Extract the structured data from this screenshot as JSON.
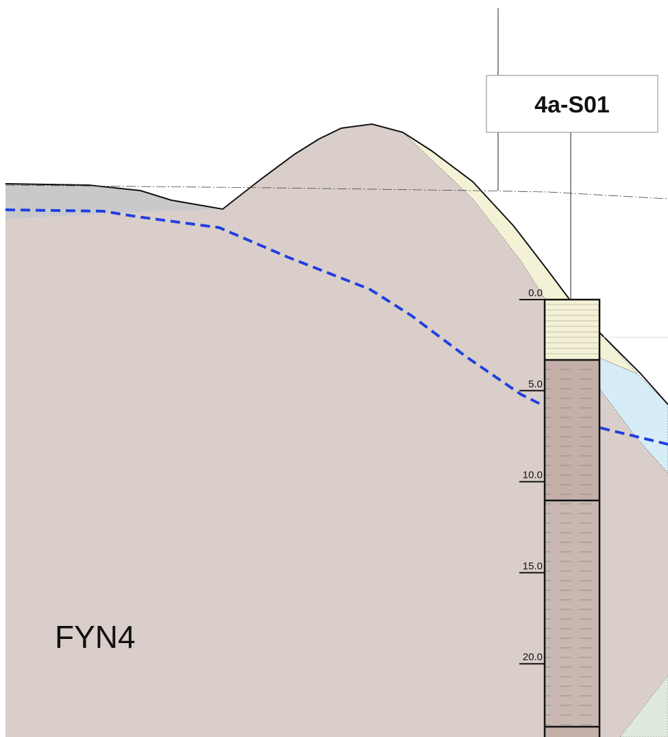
{
  "borehole": {
    "id": "4a-S01",
    "depth_labels": [
      "0.0",
      "5.0",
      "10.0",
      "15.0",
      "20.0"
    ]
  },
  "unit_label": "FYN4"
}
